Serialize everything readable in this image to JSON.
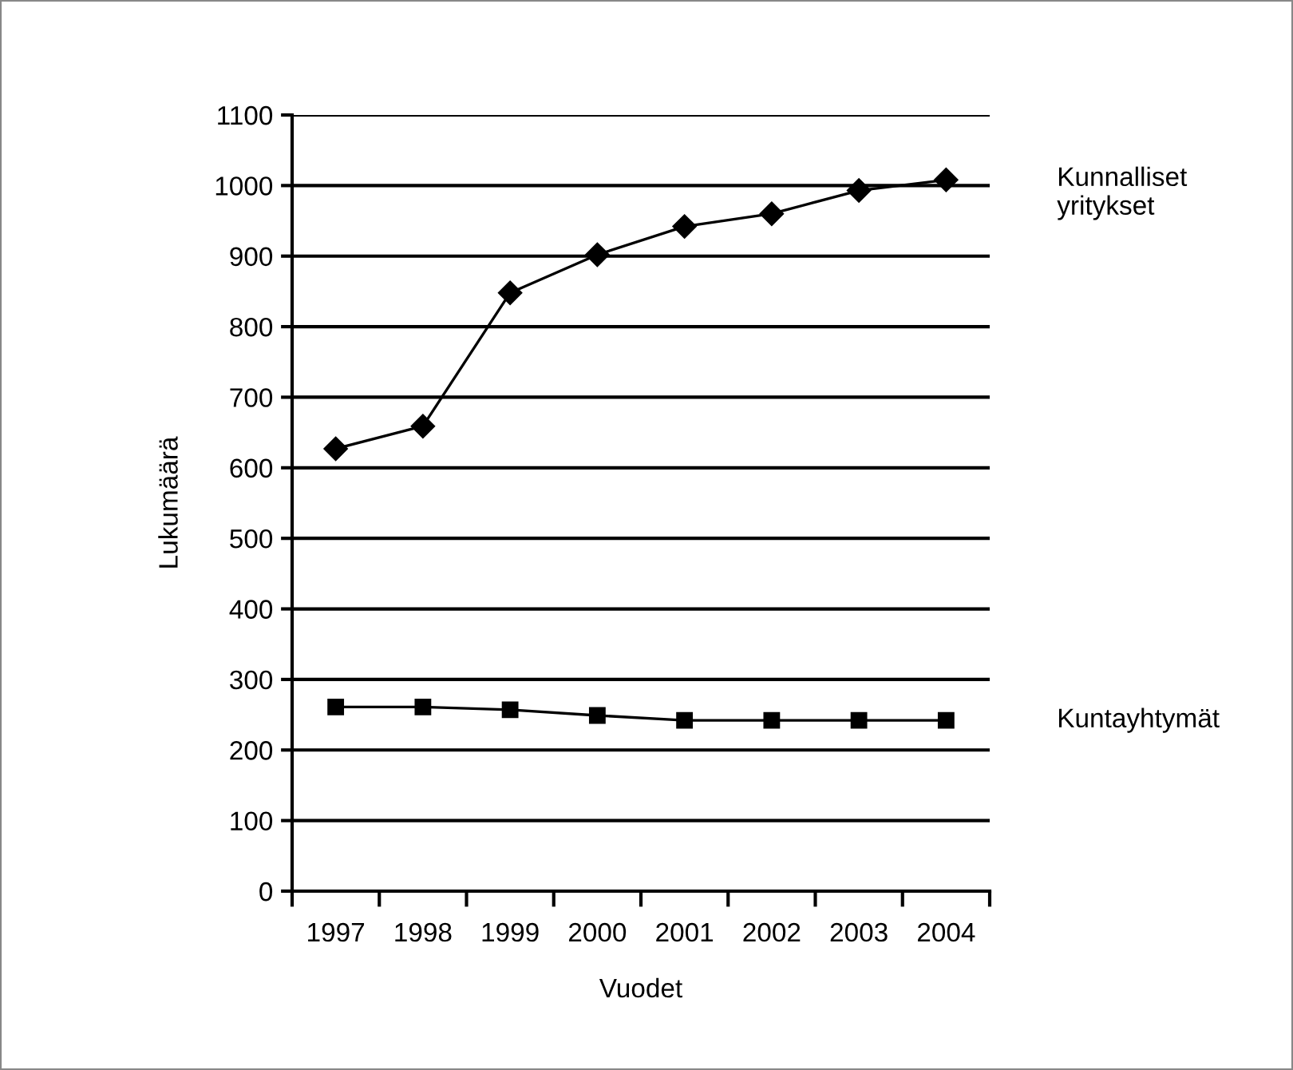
{
  "chart_data": {
    "type": "line",
    "xlabel": "Vuodet",
    "ylabel": "Lukumäärä",
    "categories": [
      "1997",
      "1998",
      "1999",
      "2000",
      "2001",
      "2002",
      "2003",
      "2004"
    ],
    "series": [
      {
        "name": "Kunnalliset\nyritykset",
        "color": "#000000",
        "marker": "diamond",
        "values": [
          627,
          659,
          848,
          902,
          942,
          960,
          993,
          1008
        ]
      },
      {
        "name": "Kuntayhtymät",
        "color": "#000000",
        "marker": "square",
        "values": [
          261,
          261,
          257,
          249,
          242,
          242,
          242,
          242
        ]
      }
    ],
    "ylim": [
      0,
      1100
    ],
    "yticks": [
      0,
      100,
      200,
      300,
      400,
      500,
      600,
      700,
      800,
      900,
      1000,
      1100
    ],
    "grid": "y",
    "legend": false,
    "line_style": "solid"
  }
}
